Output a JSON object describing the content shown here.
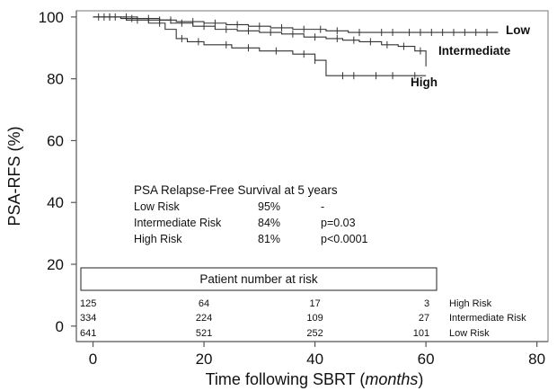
{
  "chart_data": {
    "type": "line",
    "xlabel": "Time following SBRT (",
    "xlabel_units": "months",
    "xlabel_close": ")",
    "ylabel": "PSA-RFS (%)",
    "xlim": [
      -3,
      82
    ],
    "ylim": [
      -5,
      102
    ],
    "x_ticks": [
      "0",
      "20",
      "40",
      "60",
      "80"
    ],
    "y_ticks": [
      "0",
      "20",
      "40",
      "60",
      "80",
      "100"
    ],
    "series": [
      {
        "name": "Low",
        "color": "#333333",
        "x": [
          0,
          8,
          12,
          15,
          20,
          24,
          28,
          32,
          36,
          42,
          46,
          50,
          55,
          60,
          62,
          65,
          68,
          70,
          73
        ],
        "y": [
          100,
          99.5,
          99,
          98.5,
          98,
          97.5,
          97,
          96.5,
          96,
          95.5,
          95,
          95,
          95,
          95,
          95,
          95,
          95,
          95,
          95
        ],
        "censor_x": [
          2,
          4,
          6,
          10,
          14,
          18,
          22,
          26,
          30,
          34,
          38,
          41,
          44,
          48,
          52,
          54,
          57,
          59,
          61,
          63,
          65,
          67,
          69,
          71
        ]
      },
      {
        "name": "Intermediate",
        "color": "#333333",
        "x": [
          0,
          5,
          10,
          14,
          18,
          22,
          26,
          30,
          34,
          38,
          42,
          45,
          48,
          52,
          55,
          58,
          60
        ],
        "y": [
          100,
          99.5,
          99,
          98,
          97,
          96,
          95.5,
          95,
          94.5,
          93.5,
          93,
          92.5,
          92,
          91,
          90.5,
          89,
          84
        ],
        "censor_x": [
          1,
          3,
          7,
          12,
          16,
          20,
          24,
          28,
          32,
          36,
          40,
          44,
          47,
          50,
          53,
          56,
          59
        ]
      },
      {
        "name": "High",
        "color": "#333333",
        "x": [
          0,
          6,
          10,
          13,
          15,
          17,
          20,
          25,
          30,
          36,
          40,
          42,
          45,
          50,
          55,
          58,
          60
        ],
        "y": [
          100,
          99,
          98,
          96,
          93,
          92,
          91,
          90,
          89,
          88,
          86,
          81,
          81,
          81,
          81,
          81,
          81
        ],
        "censor_x": [
          3,
          8,
          12,
          16,
          19,
          24,
          28,
          33,
          38,
          40,
          45,
          47,
          51,
          54,
          58
        ]
      }
    ],
    "series_labels": [
      "Low",
      "Intermediate",
      "High"
    ],
    "summary": {
      "title": "PSA Relapse-Free Survival at 5 years",
      "rows": [
        {
          "group": "Low Risk",
          "rate": "95%",
          "p": "-"
        },
        {
          "group": "Intermediate Risk",
          "rate": "84%",
          "p": "p=0.03"
        },
        {
          "group": "High Risk",
          "rate": "81%",
          "p": "p<0.0001"
        }
      ]
    },
    "at_risk": {
      "title": "Patient number at risk",
      "times": [
        0,
        20,
        40,
        60
      ],
      "rows": [
        {
          "label": "High Risk",
          "counts": [
            "125",
            "64",
            "17",
            "3"
          ]
        },
        {
          "label": "Intermediate Risk",
          "counts": [
            "334",
            "224",
            "109",
            "27"
          ]
        },
        {
          "label": "Low Risk",
          "counts": [
            "641",
            "521",
            "252",
            "101"
          ]
        }
      ]
    }
  }
}
